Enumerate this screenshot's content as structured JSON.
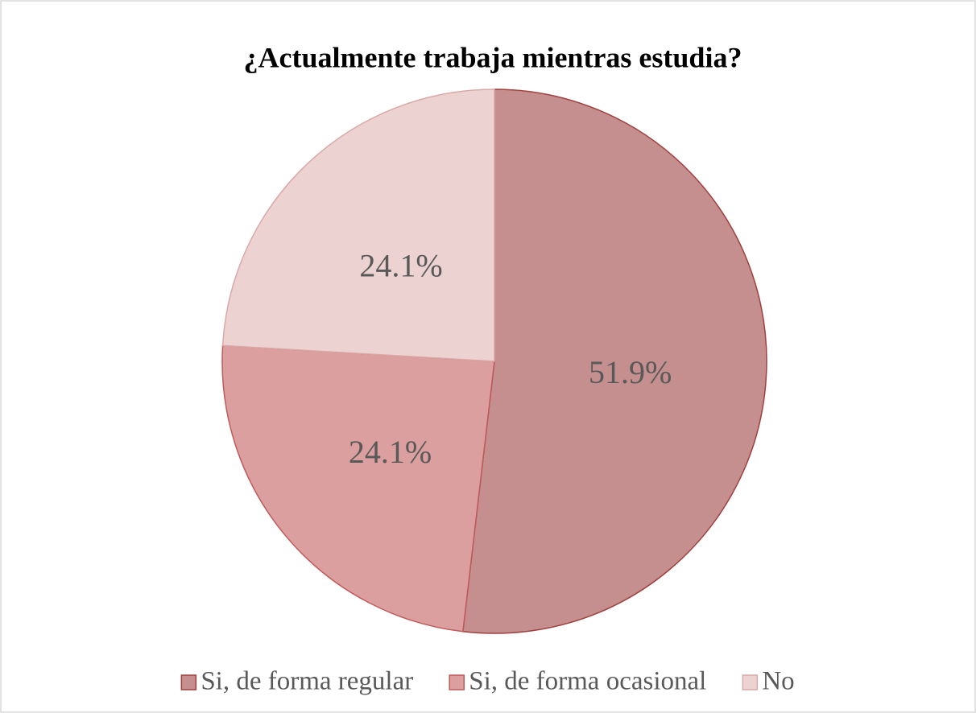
{
  "chart_data": {
    "type": "pie",
    "title": "¿Actualmente trabaja mientras estudia?",
    "categories": [
      "Si, de forma regular",
      "Si, de forma ocasional",
      "No"
    ],
    "values": [
      51.9,
      24.1,
      24.1
    ],
    "value_labels": [
      "51.9%",
      "24.1%",
      "24.1%"
    ],
    "colors": [
      "#c48f8e",
      "#dc9f9f",
      "#edd2d2"
    ],
    "stroke_colors": [
      "#a0403e",
      "#c05a58",
      "#d9a8a7"
    ]
  }
}
